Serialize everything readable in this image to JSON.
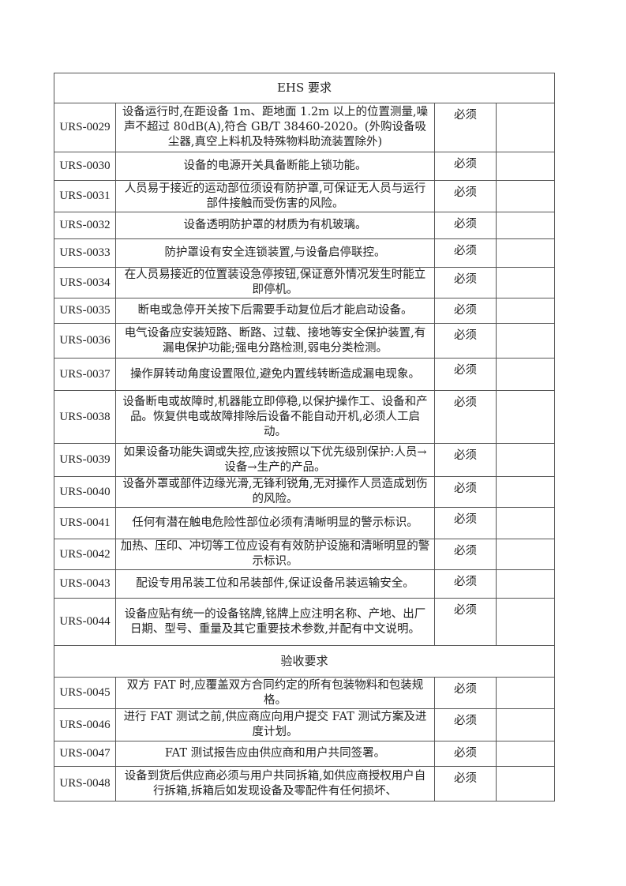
{
  "sections": [
    {
      "title": "EHS 要求",
      "rows": [
        {
          "id": "URS-0029",
          "text": "设备运行时,在距设备 1m、距地面 1.2m 以上的位置测量,噪声不超过 80dB(A),符合 GB/T 38460-2020。(外购设备吸尘器,真空上料机及特殊物料助流装置除外)",
          "level": "必须",
          "note": ""
        },
        {
          "id": "URS-0030",
          "text": "设备的电源开关具备断能上锁功能。",
          "level": "必须",
          "note": ""
        },
        {
          "id": "URS-0031",
          "text": "人员易于接近的运动部位须设有防护罩,可保证无人员与运行部件接触而受伤害的风险。",
          "level": "必须",
          "note": ""
        },
        {
          "id": "URS-0032",
          "text": "设备透明防护罩的材质为有机玻璃。",
          "level": "必须",
          "note": ""
        },
        {
          "id": "URS-0033",
          "text": "防护罩设有安全连锁装置,与设备启停联控。",
          "level": "必须",
          "note": ""
        },
        {
          "id": "URS-0034",
          "text": "在人员易接近的位置装设急停按钮,保证意外情况发生时能立即停机。",
          "level": "必须",
          "note": ""
        },
        {
          "id": "URS-0035",
          "text": "断电或急停开关按下后需要手动复位后才能启动设备。",
          "level": "必须",
          "note": ""
        },
        {
          "id": "URS-0036",
          "text": "电气设备应安装短路、断路、过载、接地等安全保护装置,有漏电保护功能;强电分路检测,弱电分类检测。",
          "level": "必须",
          "note": ""
        },
        {
          "id": "URS-0037",
          "text": "操作屏转动角度设置限位,避免内置线转断造成漏电现象。",
          "level": "必须",
          "note": ""
        },
        {
          "id": "URS-0038",
          "text": "设备断电或故障时,机器能立即停稳,以保护操作工、设备和产品。恢复供电或故障排除后设备不能自动开机,必须人工启动。",
          "level": "必须",
          "note": ""
        },
        {
          "id": "URS-0039",
          "text": "如果设备功能失调或失控,应该按照以下优先级别保护:人员→设备→生产的产品。",
          "level": "必须",
          "note": ""
        },
        {
          "id": "URS-0040",
          "text": "设备外罩或部件边缘光滑,无锋利锐角,无对操作人员造成划伤的风险。",
          "level": "必须",
          "note": ""
        },
        {
          "id": "URS-0041",
          "text": "任何有潜在触电危险性部位必须有清晰明显的警示标识。",
          "level": "必须",
          "note": ""
        },
        {
          "id": "URS-0042",
          "text": "加热、压印、冲切等工位应设有有效防护设施和清晰明显的警示标识。",
          "level": "必须",
          "note": ""
        },
        {
          "id": "URS-0043",
          "text": "配设专用吊装工位和吊装部件,保证设备吊装运输安全。",
          "level": "必须",
          "note": ""
        },
        {
          "id": "URS-0044",
          "text": "设备应贴有统一的设备铭牌,铭牌上应注明名称、产地、出厂日期、型号、重量及其它重要技术参数,并配有中文说明。",
          "level": "必须",
          "note": ""
        }
      ]
    },
    {
      "title": "验收要求",
      "rows": [
        {
          "id": "URS-0045",
          "text": "双方 FAT 时,应覆盖双方合同约定的所有包装物料和包装规格。",
          "level": "必须",
          "note": ""
        },
        {
          "id": "URS-0046",
          "text": "进行 FAT 测试之前,供应商应向用户提交 FAT 测试方案及进度计划。",
          "level": "必须",
          "note": ""
        },
        {
          "id": "URS-0047",
          "text": "FAT 测试报告应由供应商和用户共同签署。",
          "level": "必须",
          "note": ""
        },
        {
          "id": "URS-0048",
          "text": "设备到货后供应商必须与用户共同拆箱,如供应商授权用户自行拆箱,拆箱后如发现设备及零配件有任何损坏、",
          "level": "必须",
          "note": ""
        }
      ]
    }
  ]
}
